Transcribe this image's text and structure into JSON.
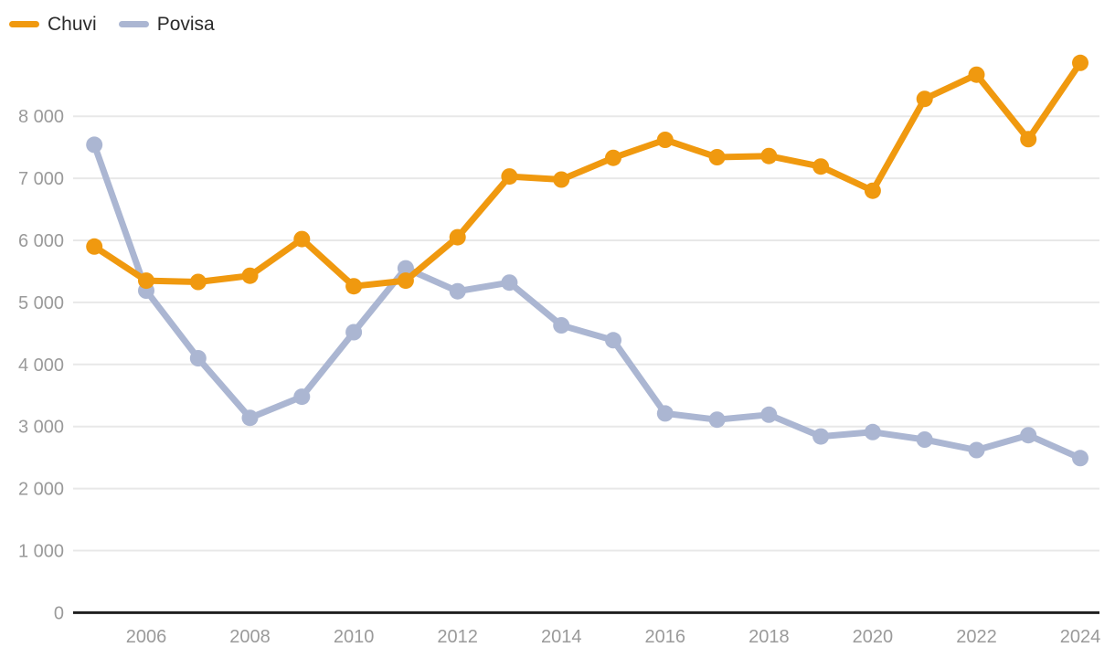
{
  "legend": {
    "items": [
      {
        "label": "Chuvi",
        "color": "#F0990F"
      },
      {
        "label": "Povisa",
        "color": "#ABB6D2"
      }
    ]
  },
  "chart_data": {
    "type": "line",
    "title": "",
    "xlabel": "",
    "ylabel": "",
    "x": [
      2005,
      2006,
      2007,
      2008,
      2009,
      2010,
      2011,
      2012,
      2013,
      2014,
      2015,
      2016,
      2017,
      2018,
      2019,
      2020,
      2021,
      2022,
      2023,
      2024
    ],
    "series": [
      {
        "name": "Chuvi",
        "color": "#F0990F",
        "values": [
          5900,
          5350,
          5330,
          5430,
          6020,
          5260,
          5350,
          6050,
          7030,
          6980,
          7330,
          7620,
          7340,
          7360,
          7190,
          6800,
          8280,
          8670,
          7630,
          8860
        ]
      },
      {
        "name": "Povisa",
        "color": "#ABB6D2",
        "values": [
          7540,
          5190,
          4100,
          3140,
          3480,
          4520,
          5550,
          5180,
          5320,
          4630,
          4390,
          3210,
          3110,
          3190,
          2840,
          2910,
          2790,
          2620,
          2860,
          2490
        ]
      }
    ],
    "ylim": [
      0,
      9000
    ],
    "yticks": [
      {
        "value": 0,
        "label": "0"
      },
      {
        "value": 1000,
        "label": "1 000"
      },
      {
        "value": 2000,
        "label": "2 000"
      },
      {
        "value": 3000,
        "label": "3 000"
      },
      {
        "value": 4000,
        "label": "4 000"
      },
      {
        "value": 5000,
        "label": "5 000"
      },
      {
        "value": 6000,
        "label": "6 000"
      },
      {
        "value": 7000,
        "label": "7 000"
      },
      {
        "value": 8000,
        "label": "8 000"
      }
    ],
    "xticks": [
      {
        "value": 2006,
        "label": "2006"
      },
      {
        "value": 2008,
        "label": "2008"
      },
      {
        "value": 2010,
        "label": "2010"
      },
      {
        "value": 2012,
        "label": "2012"
      },
      {
        "value": 2014,
        "label": "2014"
      },
      {
        "value": 2016,
        "label": "2016"
      },
      {
        "value": 2018,
        "label": "2018"
      },
      {
        "value": 2020,
        "label": "2020"
      },
      {
        "value": 2022,
        "label": "2022"
      },
      {
        "value": 2024,
        "label": "2024"
      }
    ],
    "grid": "horizontal",
    "legend_position": "top-left",
    "colors": {
      "background": "#FFFFFF",
      "gridline": "#E8E8E8",
      "axis_line": "#1F1F1F",
      "tick_text": "#9A9A9A",
      "legend_text": "#2B2B2B"
    }
  }
}
